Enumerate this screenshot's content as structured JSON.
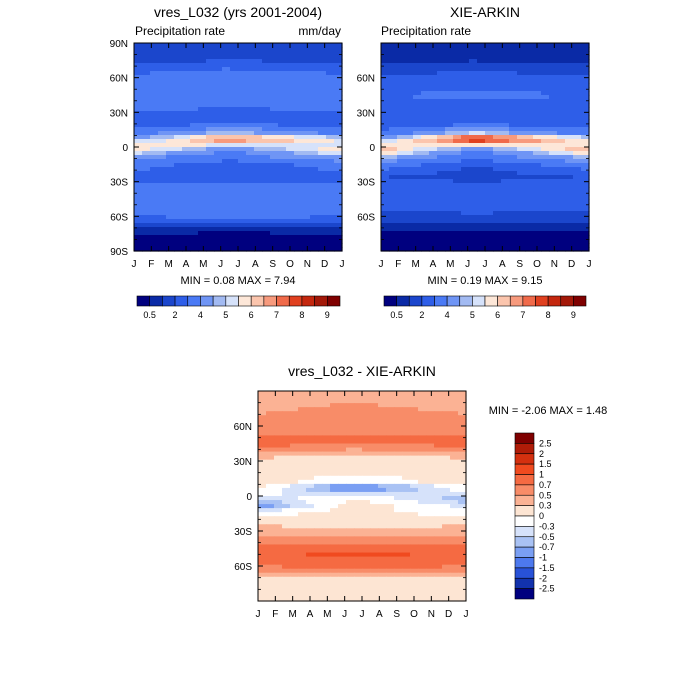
{
  "figure": {
    "panels": [
      {
        "id": "model",
        "title": "vres_L032 (yrs 2001-2004)",
        "left_label": "Precipitation rate",
        "right_label": "mm/day",
        "min_max_label": "MIN =   0.08 MAX =   7.94",
        "y_ticks": [
          "90N",
          "60N",
          "30N",
          "0",
          "30S",
          "60S",
          "90S"
        ]
      },
      {
        "id": "obs",
        "title": "XIE-ARKIN",
        "left_label": "Precipitation rate",
        "right_label": "",
        "min_max_label": "MIN =   0.19 MAX =   9.15",
        "y_ticks": [
          "",
          "60N",
          "30N",
          "0",
          "30S",
          "60S",
          ""
        ]
      },
      {
        "id": "diff",
        "title": "vres_L032 - XIE-ARKIN",
        "left_label": "",
        "right_label": "",
        "min_max_label": "MIN =  -2.06 MAX =   1.48",
        "y_ticks": [
          "",
          "60N",
          "30N",
          "0",
          "30S",
          "60S",
          ""
        ]
      }
    ],
    "month_labels": [
      "J",
      "F",
      "M",
      "A",
      "M",
      "J",
      "J",
      "A",
      "S",
      "O",
      "N",
      "D",
      "J"
    ],
    "precip_colorbar": {
      "tick_labels": [
        "0.5",
        "2",
        "4",
        "5",
        "6",
        "7",
        "8",
        "9"
      ],
      "colors": [
        "#00007f",
        "#0a2aa6",
        "#1b46cc",
        "#2e5ee8",
        "#4a7af5",
        "#6f95f5",
        "#a2baf2",
        "#d6e2fa",
        "#fde7d8",
        "#fbc5ad",
        "#f79a7d",
        "#f06a4a",
        "#e0401f",
        "#c4270e",
        "#a31808",
        "#7f0000"
      ]
    },
    "diff_colorbar": {
      "tick_labels": [
        "2.5",
        "2",
        "1.5",
        "1",
        "0.7",
        "0.5",
        "0.3",
        "0",
        "-0.3",
        "-0.5",
        "-0.7",
        "-1",
        "-1.5",
        "-2",
        "-2.5"
      ],
      "colors": [
        "#7f0000",
        "#b01c08",
        "#d4300f",
        "#f04a1f",
        "#f56a42",
        "#f88c68",
        "#fbb294",
        "#fde5d3",
        "#ffffff",
        "#d6e2fa",
        "#a9c2f4",
        "#7a9ff3",
        "#4d79ee",
        "#2852d8",
        "#1232ad",
        "#00007f"
      ]
    }
  },
  "chart_data": [
    {
      "type": "heatmap",
      "title": "vres_L032 (yrs 2001-2004)",
      "subtitle_left": "Precipitation rate",
      "units": "mm/day",
      "xlabel": "",
      "ylabel": "",
      "x_ticks": [
        "J",
        "F",
        "M",
        "A",
        "M",
        "J",
        "J",
        "A",
        "S",
        "O",
        "N",
        "D",
        "J"
      ],
      "y_ticks": [
        "90N",
        "60N",
        "30N",
        "0",
        "30S",
        "60S",
        "90S"
      ],
      "ylim": [
        -90,
        90
      ],
      "min": 0.08,
      "max": 7.94,
      "latitudes": [
        80,
        60,
        45,
        30,
        20,
        12,
        7,
        3,
        -3,
        -8,
        -15,
        -25,
        -40,
        -50,
        -60,
        -75
      ],
      "months": [
        1,
        6,
        12
      ],
      "values": [
        [
          1.0,
          1.2,
          1.0
        ],
        [
          2.2,
          2.5,
          2.2
        ],
        [
          2.8,
          2.8,
          2.8
        ],
        [
          2.0,
          1.7,
          2.0
        ],
        [
          1.6,
          1.9,
          1.6
        ],
        [
          2.4,
          4.5,
          2.6
        ],
        [
          4.0,
          6.8,
          5.0
        ],
        [
          5.0,
          5.5,
          4.8
        ],
        [
          5.5,
          3.0,
          5.5
        ],
        [
          3.5,
          2.4,
          4.2
        ],
        [
          2.3,
          1.6,
          2.3
        ],
        [
          1.8,
          1.5,
          1.8
        ],
        [
          2.4,
          2.6,
          2.4
        ],
        [
          2.6,
          2.9,
          2.6
        ],
        [
          2.0,
          2.2,
          2.0
        ],
        [
          0.5,
          0.4,
          0.5
        ]
      ]
    },
    {
      "type": "heatmap",
      "title": "XIE-ARKIN",
      "subtitle_left": "Precipitation rate",
      "xlabel": "",
      "ylabel": "",
      "x_ticks": [
        "J",
        "F",
        "M",
        "A",
        "M",
        "J",
        "J",
        "A",
        "S",
        "O",
        "N",
        "D",
        "J"
      ],
      "y_ticks": [
        "60N",
        "30N",
        "0",
        "30S",
        "60S"
      ],
      "ylim": [
        -90,
        90
      ],
      "min": 0.19,
      "max": 9.15,
      "latitudes": [
        80,
        60,
        45,
        30,
        20,
        12,
        7,
        3,
        -3,
        -8,
        -15,
        -25,
        -40,
        -50,
        -60,
        -75
      ],
      "months": [
        1,
        6,
        12
      ],
      "values": [
        [
          0.5,
          0.7,
          0.5
        ],
        [
          1.6,
          1.8,
          1.6
        ],
        [
          2.0,
          2.1,
          2.0
        ],
        [
          1.8,
          1.6,
          1.8
        ],
        [
          1.5,
          1.8,
          1.5
        ],
        [
          2.2,
          4.8,
          2.4
        ],
        [
          4.0,
          8.0,
          5.2
        ],
        [
          5.2,
          6.0,
          5.0
        ],
        [
          6.0,
          3.0,
          6.2
        ],
        [
          4.5,
          2.2,
          4.6
        ],
        [
          2.4,
          1.5,
          2.4
        ],
        [
          1.5,
          1.3,
          1.5
        ],
        [
          1.8,
          1.9,
          1.8
        ],
        [
          1.7,
          1.8,
          1.7
        ],
        [
          1.3,
          1.4,
          1.3
        ],
        [
          0.4,
          0.3,
          0.4
        ]
      ]
    },
    {
      "type": "heatmap",
      "title": "vres_L032 - XIE-ARKIN",
      "xlabel": "",
      "ylabel": "",
      "x_ticks": [
        "J",
        "F",
        "M",
        "A",
        "M",
        "J",
        "J",
        "A",
        "S",
        "O",
        "N",
        "D",
        "J"
      ],
      "y_ticks": [
        "60N",
        "30N",
        "0",
        "30S",
        "60S"
      ],
      "ylim": [
        -90,
        90
      ],
      "min": -2.06,
      "max": 1.48,
      "latitudes": [
        80,
        60,
        45,
        30,
        20,
        12,
        7,
        3,
        -3,
        -8,
        -15,
        -25,
        -40,
        -50,
        -60,
        -75
      ],
      "months": [
        1,
        6,
        12
      ],
      "values": [
        [
          0.4,
          0.5,
          0.4
        ],
        [
          0.6,
          0.7,
          0.6
        ],
        [
          0.8,
          0.7,
          0.8
        ],
        [
          0.2,
          0.1,
          0.2
        ],
        [
          0.1,
          0.1,
          0.1
        ],
        [
          0.2,
          -0.3,
          0.2
        ],
        [
          0.0,
          -1.2,
          -0.2
        ],
        [
          -0.2,
          -0.5,
          -0.2
        ],
        [
          -0.5,
          0.0,
          -0.7
        ],
        [
          -1.0,
          0.2,
          -0.4
        ],
        [
          -0.1,
          0.1,
          -0.1
        ],
        [
          0.3,
          0.2,
          0.3
        ],
        [
          0.6,
          0.7,
          0.6
        ],
        [
          0.9,
          1.1,
          0.9
        ],
        [
          0.7,
          0.8,
          0.7
        ],
        [
          0.1,
          0.1,
          0.1
        ]
      ],
      "colorbar_levels": [
        -2.5,
        -2,
        -1.5,
        -1,
        -0.7,
        -0.5,
        -0.3,
        0,
        0.3,
        0.5,
        0.7,
        1,
        1.5,
        2,
        2.5
      ]
    }
  ]
}
